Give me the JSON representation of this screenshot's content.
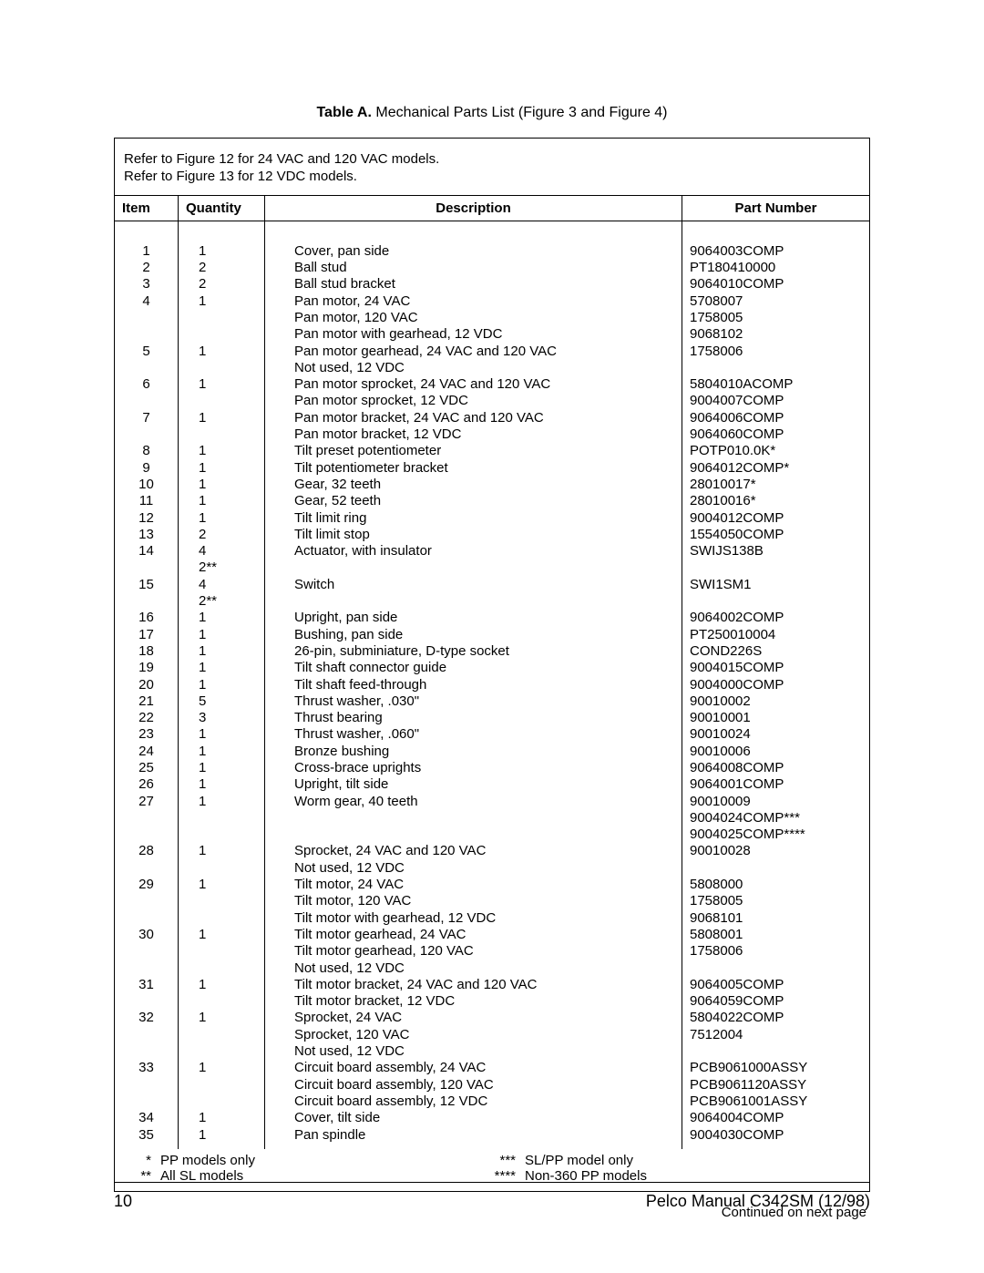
{
  "caption_bold": "Table A.",
  "caption_rest": "  Mechanical Parts List (Figure 3 and Figure 4)",
  "ref_note1": "Refer to Figure 12 for 24 VAC and 120 VAC models.",
  "ref_note2": "Refer to Figure 13 for 12 VDC models.",
  "h_item": "Item",
  "h_qty": "Quantity",
  "h_desc": "Description",
  "h_part": "Part Number",
  "col_item": " \n1\n2\n3\n4\n \n \n5\n \n6\n \n7\n \n8\n9\n10\n11\n12\n13\n14\n \n15\n \n16\n17\n18\n19\n20\n21\n22\n23\n24\n25\n26\n27\n \n \n28\n \n29\n \n \n30\n \n \n31\n \n32\n \n \n33\n \n \n34\n35",
  "col_qty": " \n1\n2\n2\n1\n \n \n1\n \n1\n \n1\n \n1\n1\n1\n1\n1\n2\n4\n2**\n4\n2**\n1\n1\n1\n1\n1\n5\n3\n1\n1\n1\n1\n1\n \n \n1\n \n1\n \n \n1\n \n \n1\n \n1\n \n \n1\n \n \n1\n1",
  "col_desc": " \nCover, pan side\nBall stud\nBall stud bracket\nPan motor, 24 VAC\nPan motor, 120 VAC\nPan motor with gearhead, 12 VDC\nPan motor gearhead, 24 VAC and 120 VAC\nNot used, 12 VDC\nPan motor sprocket, 24 VAC and 120 VAC\nPan motor sprocket, 12 VDC\nPan motor bracket, 24 VAC and 120 VAC\nPan motor bracket, 12 VDC\nTilt preset potentiometer\nTilt potentiometer bracket\nGear, 32 teeth\nGear, 52 teeth\nTilt limit ring\nTilt limit stop\nActuator, with insulator\n \nSwitch\n \nUpright, pan side\nBushing, pan side\n26-pin, subminiature, D-type socket\nTilt shaft connector guide\nTilt shaft feed-through\nThrust washer, .030\"\nThrust bearing\nThrust washer, .060\"\nBronze bushing\nCross-brace uprights\nUpright, tilt side\nWorm gear, 40 teeth\n \n \nSprocket, 24 VAC and 120 VAC\nNot used, 12 VDC\nTilt motor, 24 VAC\nTilt motor, 120 VAC\nTilt motor with gearhead, 12 VDC\nTilt motor gearhead, 24 VAC\nTilt motor gearhead, 120 VAC\nNot used, 12 VDC\nTilt motor bracket, 24 VAC and 120 VAC\nTilt motor bracket, 12 VDC\nSprocket, 24 VAC\nSprocket, 120 VAC\nNot used, 12 VDC\nCircuit board assembly, 24 VAC\nCircuit board assembly, 120 VAC\nCircuit board assembly, 12 VDC\nCover, tilt side\nPan spindle",
  "col_part": " \n9064003COMP\nPT180410000\n9064010COMP\n5708007\n1758005\n9068102\n1758006\n \n5804010ACOMP\n9004007COMP\n9064006COMP\n9064060COMP\nPOTP010.0K*\n9064012COMP*\n28010017*\n28010016*\n9004012COMP\n1554050COMP\nSWIJS138B\n \nSWI1SM1\n \n9064002COMP\nPT250010004\nCOND226S\n9004015COMP\n9004000COMP\n90010002\n90010001\n90010024\n90010006\n9064008COMP\n9064001COMP\n90010009\n9004024COMP***\n9004025COMP****\n90010028\n \n5808000\n1758005\n9068101\n5808001\n1758006\n \n9064005COMP\n9064059COMP\n5804022COMP\n7512004\n \nPCB9061000ASSY\nPCB9061120ASSY\nPCB9061001ASSY\n9064004COMP\n9004030COMP",
  "fn1_sym": "*",
  "fn1_txt": "PP models only",
  "fn2_sym": "**",
  "fn2_txt": "All SL models",
  "fn3_sym": "***",
  "fn3_txt": "SL/PP model only",
  "fn4_sym": "****",
  "fn4_txt": "Non-360  PP models",
  "continued": "Continued on next page",
  "page_num": "10",
  "manual_ref": "Pelco Manual C342SM (12/98)"
}
